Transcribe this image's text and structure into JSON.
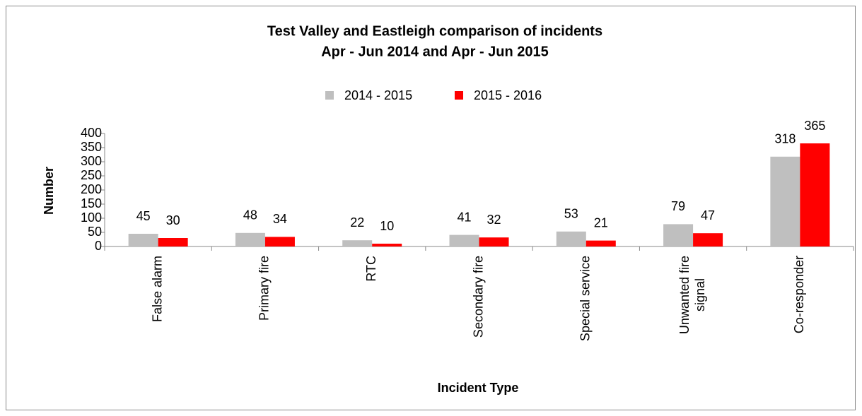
{
  "chart_data": {
    "type": "bar",
    "title": "Test Valley and Eastleigh comparison of incidents",
    "subtitle": "Apr - Jun 2014 and Apr - Jun 2015",
    "x_label": "Incident Type",
    "y_label": "Number",
    "categories": [
      "False alarm",
      "Primary fire",
      "RTC",
      "Secondary fire",
      "Special service",
      "Unwanted fire signal",
      "Co-responder"
    ],
    "series": [
      {
        "name": "2014 - 2015",
        "color": "#bfbfbf",
        "values": [
          45,
          48,
          22,
          41,
          53,
          79,
          318
        ]
      },
      {
        "name": "2015 - 2016",
        "color": "#ff0000",
        "values": [
          30,
          34,
          10,
          32,
          21,
          47,
          365
        ]
      }
    ],
    "ylim": [
      0,
      400
    ],
    "yticks": [
      0,
      50,
      100,
      150,
      200,
      250,
      300,
      350,
      400
    ],
    "legend": "top"
  }
}
